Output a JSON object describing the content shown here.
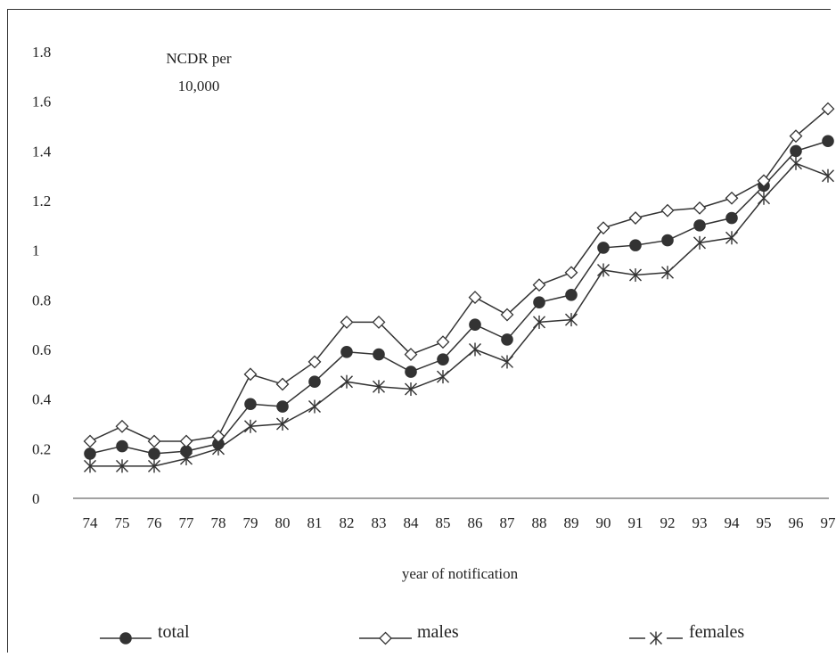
{
  "chart_data": {
    "type": "line",
    "annotation_lines": [
      "NCDR per",
      "10,000"
    ],
    "xlabel": "year of notification",
    "ylabel": "",
    "categories": [
      "74",
      "75",
      "76",
      "77",
      "78",
      "79",
      "80",
      "81",
      "82",
      "83",
      "84",
      "85",
      "86",
      "87",
      "88",
      "89",
      "90",
      "91",
      "92",
      "93",
      "94",
      "95",
      "96",
      "97"
    ],
    "y_ticks": [
      "0",
      "0.2",
      "0.4",
      "0.6",
      "0.8",
      "1",
      "1.2",
      "1.4",
      "1.6",
      "1.8"
    ],
    "ylim": [
      0,
      1.8
    ],
    "grid": false,
    "legend_position": "bottom",
    "series": [
      {
        "name": "total",
        "marker": "filled-circle",
        "color": "#333333",
        "values": [
          0.18,
          0.21,
          0.18,
          0.19,
          0.22,
          0.38,
          0.37,
          0.47,
          0.59,
          0.58,
          0.51,
          0.56,
          0.7,
          0.64,
          0.79,
          0.82,
          1.01,
          1.02,
          1.04,
          1.1,
          1.13,
          1.26,
          1.4,
          1.44
        ]
      },
      {
        "name": "males",
        "marker": "open-diamond",
        "color": "#333333",
        "values": [
          0.23,
          0.29,
          0.23,
          0.23,
          0.25,
          0.5,
          0.46,
          0.55,
          0.71,
          0.71,
          0.58,
          0.63,
          0.81,
          0.74,
          0.86,
          0.91,
          1.09,
          1.13,
          1.16,
          1.17,
          1.21,
          1.28,
          1.46,
          1.57
        ]
      },
      {
        "name": "females",
        "marker": "asterisk",
        "color": "#333333",
        "values": [
          0.13,
          0.13,
          0.13,
          0.16,
          0.2,
          0.29,
          0.3,
          0.37,
          0.47,
          0.45,
          0.44,
          0.49,
          0.6,
          0.55,
          0.71,
          0.72,
          0.92,
          0.9,
          0.91,
          1.03,
          1.05,
          1.21,
          1.35,
          1.3
        ]
      }
    ]
  }
}
